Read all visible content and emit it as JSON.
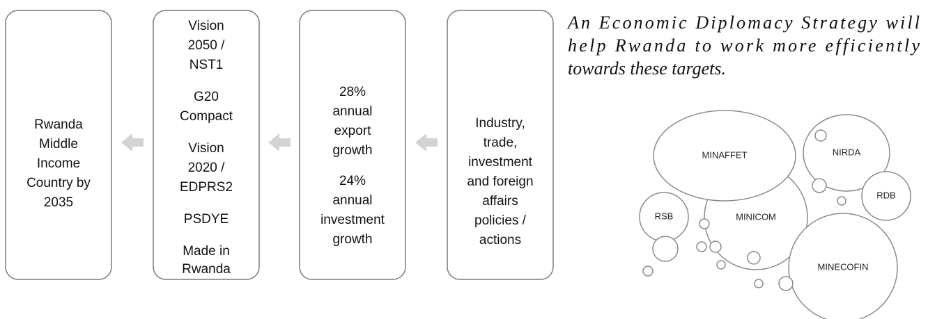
{
  "boxes": [
    {
      "lines": [
        "Rwanda",
        "Middle",
        "Income",
        "Country by",
        "2035"
      ]
    },
    {
      "lines": [
        "Vision",
        "2050 /",
        "NST1",
        "G20",
        "Compact",
        "Vision",
        "2020 /",
        "EDPRS2",
        "PSDYE",
        "Made in",
        "Rwanda"
      ]
    },
    {
      "lines": [
        "28%",
        "annual",
        "export",
        "growth",
        "24%",
        "annual",
        "investment",
        "growth"
      ]
    },
    {
      "lines": [
        "Industry,",
        "trade,",
        "investment",
        "and foreign",
        "affairs",
        "policies /",
        "actions"
      ]
    }
  ],
  "note": {
    "lines": [
      "An Economic Diplomacy Strategy will",
      "help Rwanda to work more efficiently",
      "towards these targets."
    ]
  },
  "bubbles": [
    {
      "label": "MINAFFET"
    },
    {
      "label": "NIRDA"
    },
    {
      "label": "RSB"
    },
    {
      "label": "MINICOM"
    },
    {
      "label": "RDB"
    },
    {
      "label": "MINECOFIN"
    }
  ]
}
